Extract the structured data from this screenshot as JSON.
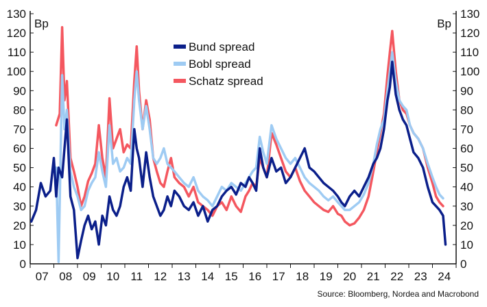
{
  "chart_data": {
    "type": "line",
    "title": "",
    "xlabel": "",
    "ylabel": "",
    "y_unit_left": "Bp",
    "y_unit_right": "Bp",
    "ylim": [
      0,
      130
    ],
    "yticks": [
      0,
      10,
      20,
      30,
      40,
      50,
      60,
      70,
      80,
      90,
      100,
      110,
      120,
      130
    ],
    "xlim": [
      2007.0,
      2025.0
    ],
    "xtick_labels": [
      "07",
      "08",
      "09",
      "10",
      "11",
      "12",
      "13",
      "14",
      "15",
      "16",
      "17",
      "18",
      "19",
      "20",
      "21",
      "22",
      "23",
      "24"
    ],
    "grid": false,
    "legend_position": "top-center",
    "source": "Source: Bloomberg, Nordea and Macrobond",
    "series": [
      {
        "name": "Schatz spread",
        "color": "#f4575f",
        "x": [
          2008.1,
          2008.25,
          2008.35,
          2008.45,
          2008.55,
          2008.7,
          2008.85,
          2009.0,
          2009.15,
          2009.3,
          2009.45,
          2009.6,
          2009.75,
          2009.9,
          2010.05,
          2010.2,
          2010.35,
          2010.5,
          2010.65,
          2010.8,
          2010.95,
          2011.1,
          2011.25,
          2011.4,
          2011.5,
          2011.6,
          2011.75,
          2011.9,
          2012.05,
          2012.2,
          2012.35,
          2012.5,
          2012.65,
          2012.8,
          2012.95,
          2013.1,
          2013.3,
          2013.5,
          2013.7,
          2013.9,
          2014.1,
          2014.3,
          2014.5,
          2014.7,
          2014.9,
          2015.1,
          2015.3,
          2015.5,
          2015.7,
          2015.9,
          2016.1,
          2016.25,
          2016.4,
          2016.55,
          2016.7,
          2016.85,
          2017.0,
          2017.2,
          2017.4,
          2017.6,
          2017.8,
          2018.0,
          2018.2,
          2018.4,
          2018.6,
          2018.8,
          2019.0,
          2019.2,
          2019.4,
          2019.6,
          2019.8,
          2020.0,
          2020.15,
          2020.3,
          2020.5,
          2020.7,
          2020.9,
          2021.1,
          2021.3,
          2021.5,
          2021.65,
          2021.8,
          2021.95,
          2022.1,
          2022.2,
          2022.3,
          2022.45,
          2022.6,
          2022.75,
          2022.9,
          2023.05,
          2023.2,
          2023.4,
          2023.6,
          2023.8,
          2024.0,
          2024.15,
          2024.3,
          2024.45
        ],
        "values": [
          72,
          78,
          123,
          85,
          95,
          55,
          48,
          40,
          30,
          35,
          43,
          47,
          52,
          72,
          55,
          45,
          86,
          60,
          65,
          70,
          58,
          62,
          60,
          95,
          113,
          90,
          70,
          85,
          75,
          55,
          48,
          42,
          40,
          48,
          55,
          45,
          42,
          40,
          35,
          40,
          32,
          30,
          28,
          25,
          30,
          32,
          28,
          35,
          30,
          27,
          35,
          38,
          42,
          40,
          55,
          50,
          45,
          68,
          62,
          55,
          48,
          45,
          50,
          43,
          38,
          35,
          32,
          30,
          28,
          27,
          30,
          26,
          25,
          22,
          20,
          21,
          24,
          28,
          35,
          48,
          58,
          68,
          78,
          98,
          110,
          121,
          100,
          85,
          80,
          78,
          72,
          68,
          65,
          60,
          50,
          42,
          35,
          32,
          30
        ]
      },
      {
        "name": "Bobl spread",
        "color": "#9ecbf3",
        "x": [
          2008.1,
          2008.2,
          2008.35,
          2008.45,
          2008.55,
          2008.7,
          2008.85,
          2009.0,
          2009.15,
          2009.3,
          2009.45,
          2009.6,
          2009.75,
          2009.9,
          2010.05,
          2010.2,
          2010.35,
          2010.5,
          2010.65,
          2010.8,
          2010.95,
          2011.1,
          2011.25,
          2011.4,
          2011.5,
          2011.6,
          2011.75,
          2011.9,
          2012.05,
          2012.2,
          2012.35,
          2012.5,
          2012.65,
          2012.8,
          2012.95,
          2013.1,
          2013.3,
          2013.5,
          2013.7,
          2013.9,
          2014.1,
          2014.3,
          2014.5,
          2014.7,
          2014.9,
          2015.1,
          2015.3,
          2015.5,
          2015.7,
          2015.9,
          2016.1,
          2016.25,
          2016.4,
          2016.55,
          2016.7,
          2016.85,
          2017.0,
          2017.2,
          2017.4,
          2017.6,
          2017.8,
          2018.0,
          2018.2,
          2018.4,
          2018.6,
          2018.8,
          2019.0,
          2019.2,
          2019.4,
          2019.6,
          2019.8,
          2020.0,
          2020.15,
          2020.3,
          2020.5,
          2020.7,
          2020.9,
          2021.1,
          2021.3,
          2021.5,
          2021.65,
          2021.8,
          2021.95,
          2022.1,
          2022.2,
          2022.3,
          2022.45,
          2022.6,
          2022.75,
          2022.9,
          2023.05,
          2023.2,
          2023.4,
          2023.6,
          2023.8,
          2024.0,
          2024.15,
          2024.3,
          2024.45
        ],
        "values": [
          50,
          1,
          98,
          70,
          80,
          48,
          40,
          35,
          28,
          30,
          38,
          42,
          45,
          58,
          48,
          40,
          72,
          52,
          55,
          48,
          50,
          55,
          52,
          85,
          100,
          85,
          70,
          82,
          70,
          55,
          52,
          55,
          60,
          52,
          50,
          48,
          45,
          42,
          40,
          45,
          38,
          35,
          33,
          30,
          35,
          40,
          38,
          42,
          40,
          38,
          42,
          45,
          48,
          50,
          66,
          58,
          52,
          72,
          65,
          60,
          55,
          52,
          55,
          50,
          45,
          42,
          40,
          38,
          35,
          33,
          35,
          32,
          30,
          28,
          28,
          30,
          32,
          36,
          42,
          52,
          62,
          70,
          75,
          90,
          100,
          110,
          95,
          85,
          82,
          80,
          72,
          68,
          65,
          60,
          52,
          45,
          40,
          36,
          34
        ]
      },
      {
        "name": "Bund spread",
        "color": "#0b1f8a",
        "x": [
          2007.05,
          2007.25,
          2007.45,
          2007.65,
          2007.85,
          2008.0,
          2008.1,
          2008.2,
          2008.35,
          2008.45,
          2008.55,
          2008.7,
          2008.85,
          2009.0,
          2009.15,
          2009.3,
          2009.45,
          2009.6,
          2009.75,
          2009.9,
          2010.05,
          2010.2,
          2010.35,
          2010.5,
          2010.65,
          2010.8,
          2010.95,
          2011.1,
          2011.25,
          2011.4,
          2011.5,
          2011.6,
          2011.75,
          2011.9,
          2012.05,
          2012.2,
          2012.35,
          2012.5,
          2012.65,
          2012.8,
          2012.95,
          2013.1,
          2013.3,
          2013.5,
          2013.7,
          2013.9,
          2014.1,
          2014.3,
          2014.5,
          2014.7,
          2014.9,
          2015.1,
          2015.3,
          2015.5,
          2015.7,
          2015.9,
          2016.1,
          2016.25,
          2016.4,
          2016.55,
          2016.7,
          2016.85,
          2017.0,
          2017.2,
          2017.4,
          2017.6,
          2017.8,
          2018.0,
          2018.2,
          2018.4,
          2018.6,
          2018.8,
          2019.0,
          2019.2,
          2019.4,
          2019.6,
          2019.8,
          2020.0,
          2020.15,
          2020.3,
          2020.5,
          2020.7,
          2020.9,
          2021.1,
          2021.3,
          2021.5,
          2021.65,
          2021.8,
          2021.95,
          2022.1,
          2022.2,
          2022.3,
          2022.45,
          2022.6,
          2022.75,
          2022.9,
          2023.05,
          2023.2,
          2023.4,
          2023.6,
          2023.8,
          2024.0,
          2024.15,
          2024.3,
          2024.45,
          2024.55
        ],
        "values": [
          22,
          28,
          42,
          35,
          38,
          55,
          35,
          50,
          45,
          60,
          75,
          35,
          28,
          3,
          12,
          20,
          25,
          18,
          22,
          10,
          25,
          20,
          35,
          28,
          25,
          30,
          40,
          45,
          38,
          70,
          60,
          55,
          40,
          58,
          45,
          35,
          30,
          25,
          28,
          35,
          30,
          38,
          35,
          30,
          28,
          32,
          25,
          30,
          22,
          28,
          30,
          35,
          38,
          40,
          36,
          42,
          40,
          45,
          42,
          38,
          60,
          50,
          45,
          55,
          48,
          50,
          42,
          45,
          50,
          55,
          60,
          50,
          48,
          45,
          42,
          40,
          38,
          35,
          32,
          30,
          35,
          38,
          35,
          40,
          45,
          52,
          55,
          60,
          70,
          85,
          92,
          105,
          88,
          80,
          75,
          72,
          65,
          58,
          55,
          50,
          40,
          32,
          30,
          28,
          25,
          10
        ]
      }
    ]
  }
}
